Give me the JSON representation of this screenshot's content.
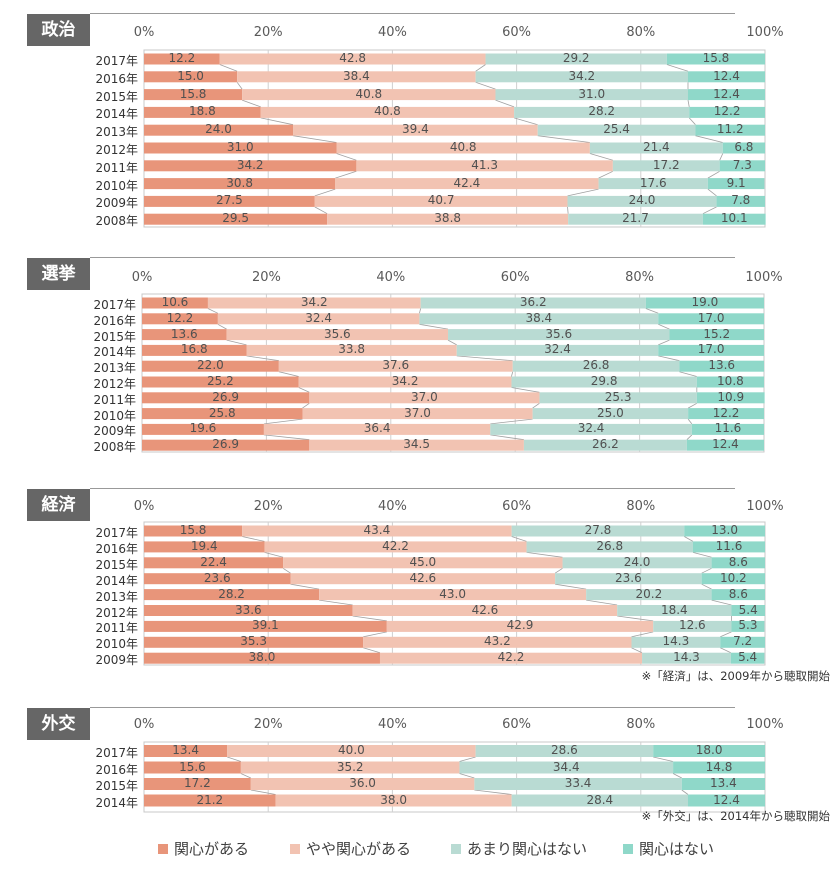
{
  "chart_data": [
    {
      "type": "bar",
      "orientation": "horizontal-stacked-100",
      "title": "政治",
      "categories": [
        "2017年",
        "2016年",
        "2015年",
        "2014年",
        "2013年",
        "2012年",
        "2011年",
        "2010年",
        "2009年",
        "2008年"
      ],
      "series": [
        {
          "name": "関心がある",
          "values": [
            12.2,
            15.0,
            15.8,
            18.8,
            24.0,
            31.0,
            34.2,
            30.8,
            27.5,
            29.5
          ]
        },
        {
          "name": "やや関心がある",
          "values": [
            42.8,
            38.4,
            40.8,
            40.8,
            39.4,
            40.8,
            41.3,
            42.4,
            40.7,
            38.8
          ]
        },
        {
          "name": "あまり関心はない",
          "values": [
            29.2,
            34.2,
            31.0,
            28.2,
            25.4,
            21.4,
            17.2,
            17.6,
            24.0,
            21.7
          ]
        },
        {
          "name": "関心はない",
          "values": [
            15.8,
            12.4,
            12.4,
            12.2,
            11.2,
            6.8,
            7.3,
            9.1,
            7.8,
            10.1
          ]
        }
      ],
      "value_labels": [
        [
          "12.2",
          "15.0",
          "15.8",
          "18.8",
          "24.0",
          "31.0",
          "34.2",
          "30.8",
          "27.5",
          "29.5"
        ],
        [
          "42.8",
          "38.4",
          "40.8",
          "40.8",
          "39.4",
          "40.8",
          "41.3",
          "42.4",
          "40.7",
          "38.8"
        ],
        [
          "29.2",
          "34.2",
          "31.0",
          "28.2",
          "25.4",
          "21.4",
          "17.2",
          "17.6",
          "24.0",
          "21.7"
        ],
        [
          "15.8",
          "12.4",
          "12.4",
          "12.2",
          "11.2",
          "6.8",
          "7.3",
          "9.1",
          "7.8",
          "10.1"
        ]
      ],
      "xlim": [
        0,
        100
      ],
      "x_ticks": [
        "0%",
        "20%",
        "40%",
        "60%",
        "80%",
        "100%"
      ],
      "grid": true,
      "note": ""
    },
    {
      "type": "bar",
      "orientation": "horizontal-stacked-100",
      "title": "選挙",
      "categories": [
        "2017年",
        "2016年",
        "2015年",
        "2014年",
        "2013年",
        "2012年",
        "2011年",
        "2010年",
        "2009年",
        "2008年"
      ],
      "series": [
        {
          "name": "関心がある",
          "values": [
            10.6,
            12.2,
            13.6,
            16.8,
            22.0,
            25.2,
            26.9,
            25.8,
            19.6,
            26.9
          ]
        },
        {
          "name": "やや関心がある",
          "values": [
            34.2,
            32.4,
            35.6,
            33.8,
            37.6,
            34.2,
            37.0,
            37.0,
            36.4,
            34.5
          ]
        },
        {
          "name": "あまり関心はない",
          "values": [
            36.2,
            38.4,
            35.6,
            32.4,
            26.8,
            29.8,
            25.3,
            25.0,
            32.4,
            26.2
          ]
        },
        {
          "name": "関心はない",
          "values": [
            19.0,
            17.0,
            15.2,
            17.0,
            13.6,
            10.8,
            10.9,
            12.2,
            11.6,
            12.4
          ]
        }
      ],
      "value_labels": [
        [
          "10.6",
          "12.2",
          "13.6",
          "16.8",
          "22.0",
          "25.2",
          "26.9",
          "25.8",
          "19.6",
          "26.9"
        ],
        [
          "34.2",
          "32.4",
          "35.6",
          "33.8",
          "37.6",
          "34.2",
          "37.0",
          "37.0",
          "36.4",
          "34.5"
        ],
        [
          "36.2",
          "38.4",
          "35.6",
          "32.4",
          "26.8",
          "29.8",
          "25.3",
          "25.0",
          "32.4",
          "26.2"
        ],
        [
          "19.0",
          "17.0",
          "15.2",
          "17.0",
          "13.6",
          "10.8",
          "10.9",
          "12.2",
          "11.6",
          "12.4"
        ]
      ],
      "xlim": [
        0,
        100
      ],
      "x_ticks": [
        "0%",
        "20%",
        "40%",
        "60%",
        "80%",
        "100%"
      ],
      "grid": true,
      "note": ""
    },
    {
      "type": "bar",
      "orientation": "horizontal-stacked-100",
      "title": "経済",
      "categories": [
        "2017年",
        "2016年",
        "2015年",
        "2014年",
        "2013年",
        "2012年",
        "2011年",
        "2010年",
        "2009年"
      ],
      "series": [
        {
          "name": "関心がある",
          "values": [
            15.8,
            19.4,
            22.4,
            23.6,
            28.2,
            33.6,
            39.1,
            35.3,
            38.0
          ]
        },
        {
          "name": "やや関心がある",
          "values": [
            43.4,
            42.2,
            45.0,
            42.6,
            43.0,
            42.6,
            42.9,
            43.2,
            42.2
          ]
        },
        {
          "name": "あまり関心はない",
          "values": [
            27.8,
            26.8,
            24.0,
            23.6,
            20.2,
            18.4,
            12.6,
            14.3,
            14.3
          ]
        },
        {
          "name": "関心はない",
          "values": [
            13.0,
            11.6,
            8.6,
            10.2,
            8.6,
            5.4,
            5.3,
            7.2,
            5.4
          ]
        }
      ],
      "value_labels": [
        [
          "15.8",
          "19.4",
          "22.4",
          "23.6",
          "28.2",
          "33.6",
          "39.1",
          "35.3",
          "38.0"
        ],
        [
          "43.4",
          "42.2",
          "45.0",
          "42.6",
          "43.0",
          "42.6",
          "42.9",
          "43.2",
          "42.2"
        ],
        [
          "27.8",
          "26.8",
          "24.0",
          "23.6",
          "20.2",
          "18.4",
          "12.6",
          "14.3",
          "14.3"
        ],
        [
          "13.0",
          "11.6",
          "8.6",
          "10.2",
          "8.6",
          "5.4",
          "5.3",
          "7.2",
          "5.4"
        ]
      ],
      "xlim": [
        0,
        100
      ],
      "x_ticks": [
        "0%",
        "20%",
        "40%",
        "60%",
        "80%",
        "100%"
      ],
      "grid": true,
      "note": "※「経済」は、2009年から聴取開始"
    },
    {
      "type": "bar",
      "orientation": "horizontal-stacked-100",
      "title": "外交",
      "categories": [
        "2017年",
        "2016年",
        "2015年",
        "2014年"
      ],
      "series": [
        {
          "name": "関心がある",
          "values": [
            13.4,
            15.6,
            17.2,
            21.2
          ]
        },
        {
          "name": "やや関心がある",
          "values": [
            40.0,
            35.2,
            36.0,
            38.0
          ]
        },
        {
          "name": "あまり関心はない",
          "values": [
            28.6,
            34.4,
            33.4,
            28.4
          ]
        },
        {
          "name": "関心はない",
          "values": [
            18.0,
            14.8,
            13.4,
            12.4
          ]
        }
      ],
      "value_labels": [
        [
          "13.4",
          "15.6",
          "17.2",
          "21.2"
        ],
        [
          "40.0",
          "35.2",
          "36.0",
          "38.0"
        ],
        [
          "28.6",
          "34.4",
          "33.4",
          "28.4"
        ],
        [
          "18.0",
          "14.8",
          "13.4",
          "12.4"
        ]
      ],
      "xlim": [
        0,
        100
      ],
      "x_ticks": [
        "0%",
        "20%",
        "40%",
        "60%",
        "80%",
        "100%"
      ],
      "grid": true,
      "note": "※「外交」は、2014年から聴取開始"
    }
  ],
  "legend": {
    "placement": "bottom",
    "items": [
      {
        "label": "関心がある",
        "color": "#E8957A"
      },
      {
        "label": "やや関心がある",
        "color": "#F2C3B2"
      },
      {
        "label": "あまり関心はない",
        "color": "#B9DBD3"
      },
      {
        "label": "関心はない",
        "color": "#8FD8C9"
      }
    ]
  },
  "colors": {
    "series": [
      "#E8957A",
      "#F2C3B2",
      "#B9DBD3",
      "#8FD8C9"
    ],
    "section_tag_bg": "#666666",
    "section_tag_text": "#FFFFFF"
  }
}
